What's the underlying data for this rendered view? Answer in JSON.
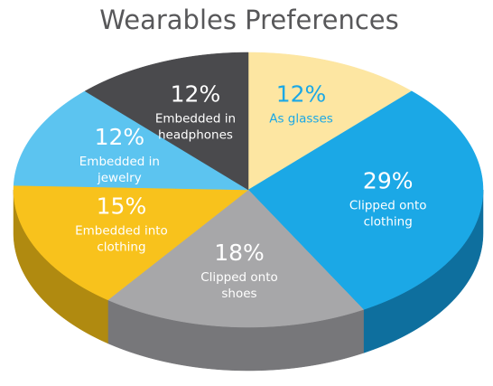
{
  "chart_data": {
    "type": "pie",
    "title": "Wearables Preferences",
    "categories": [
      "As glasses",
      "Clipped onto clothing",
      "Clipped onto shoes",
      "Embedded into clothing",
      "Embedded in jewelry",
      "Embedded in headphones"
    ],
    "values": [
      12,
      29,
      18,
      15,
      12,
      12
    ],
    "value_labels": [
      "12%",
      "29%",
      "18%",
      "15%",
      "12%",
      "12%"
    ],
    "colors": [
      "#fde6a2",
      "#1ba8e6",
      "#a7a7a9",
      "#f8c21c",
      "#5cc4f0",
      "#4a4a4d"
    ],
    "side_colors": [
      "#d9bf73",
      "#0e6f9e",
      "#77777a",
      "#b08a10",
      "#3a8fb3",
      "#2e2e30"
    ],
    "label_colors": [
      "#1ba8e6",
      "#ffffff",
      "#ffffff",
      "#ffffff",
      "#ffffff",
      "#ffffff"
    ]
  }
}
